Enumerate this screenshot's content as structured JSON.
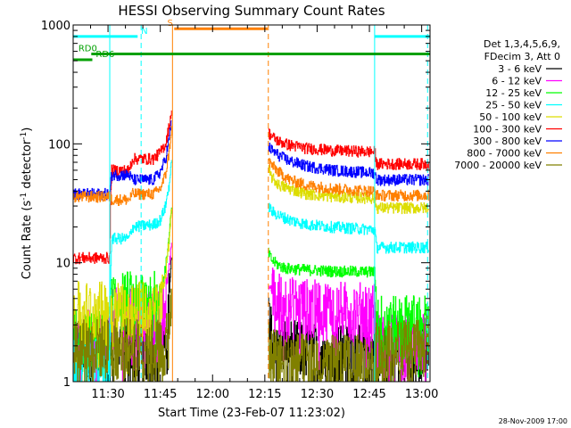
{
  "chart_data": {
    "type": "line",
    "title": "HESSI Observing Summary Count Rates",
    "xlabel": "Start Time (23-Feb-07 11:23:02)",
    "ylabel": "Count Rate (s⁻¹ detector⁻¹)",
    "ylabel_parts": {
      "a": "Count Rate (s",
      "e1": "-1",
      "b": " detector",
      "e2": "-1",
      "c": ")"
    },
    "yscale": "log",
    "ylim": [
      1,
      1000
    ],
    "xlim_minutes": [
      680.0,
      782.4
    ],
    "x_ticks": [
      {
        "m": 690,
        "label": "11:30"
      },
      {
        "m": 705,
        "label": "11:45"
      },
      {
        "m": 720,
        "label": "12:00"
      },
      {
        "m": 735,
        "label": "12:15"
      },
      {
        "m": 750,
        "label": "12:30"
      },
      {
        "m": 765,
        "label": "12:45"
      },
      {
        "m": 780,
        "label": "13:00"
      }
    ],
    "y_ticks": [
      {
        "v": 1,
        "label": "1"
      },
      {
        "v": 10,
        "label": "10"
      },
      {
        "v": 100,
        "label": "100"
      },
      {
        "v": 1000,
        "label": "1000"
      }
    ],
    "legend_header": [
      "Det 1,3,4,5,6,9,",
      "FDecim 3, Att 0"
    ],
    "date_stamp": "28-Nov-2009 17:00",
    "gap": [
      708.5,
      736.0
    ],
    "series": [
      {
        "name": "3 - 6 keV",
        "color": "#000000",
        "segs": [
          {
            "x": [
              680,
              706.5,
              707.0,
              707.6,
              708.3
            ],
            "y": [
              2.2,
              2.2,
              3.0,
              6.0,
              12.0
            ]
          },
          {
            "x": [
              736.0,
              736.5,
              737,
              739,
              741,
              747,
              766.5,
              782
            ],
            "y": [
              4.0,
              3.0,
              2.6,
              2.4,
              2.2,
              2.0,
              1.9,
              1.9
            ]
          }
        ]
      },
      {
        "name": "6 - 12 keV",
        "color": "#ff00ff",
        "segs": [
          {
            "x": [
              680,
              690.5,
              691,
              704,
              705.5,
              706.5,
              707.5,
              708.3
            ],
            "y": [
              2.6,
              2.6,
              4.0,
              4.0,
              4.2,
              5.5,
              9.0,
              14.0
            ]
          },
          {
            "x": [
              736.0,
              737,
              739,
              741,
              745,
              755,
              766.5,
              767,
              782
            ],
            "y": [
              6.5,
              6.0,
              5.4,
              5.0,
              4.8,
              4.5,
              4.4,
              2.4,
              2.4
            ]
          }
        ]
      },
      {
        "name": "12 - 25 keV",
        "color": "#00ff00",
        "segs": [
          {
            "x": [
              680,
              690.5,
              691,
              704,
              705.5,
              706.5,
              707.5,
              708.3
            ],
            "y": [
              2.6,
              2.6,
              5.5,
              5.7,
              6.5,
              9.0,
              16.0,
              30.0
            ]
          },
          {
            "x": [
              736.0,
              737,
              739,
              741,
              745,
              755,
              766.5,
              767,
              782
            ],
            "y": [
              12.0,
              10.5,
              9.5,
              9.0,
              8.8,
              8.5,
              8.4,
              3.5,
              3.5
            ]
          }
        ]
      },
      {
        "name": "25 - 50 keV",
        "color": "#00ffff",
        "segs": [
          {
            "x": [
              680,
              690.5,
              691,
              696,
              697,
              703,
              705,
              706.5,
              707.5,
              708.3
            ],
            "y": [
              1.5,
              1.5,
              16.0,
              16.0,
              20.0,
              21.0,
              23.0,
              30.0,
              45.0,
              70.0
            ]
          },
          {
            "x": [
              736.0,
              737,
              739,
              742,
              747,
              755,
              766.5,
              767,
              782
            ],
            "y": [
              30.0,
              27.0,
              25.0,
              23.0,
              21.0,
              20.0,
              19.0,
              13.5,
              13.5
            ]
          }
        ]
      },
      {
        "name": "50 - 100 keV",
        "color": "#dddd00",
        "segs": [
          {
            "x": [
              680,
              690.5,
              691,
              703,
              705,
              706.5,
              707.5,
              708.3
            ],
            "y": [
              4.5,
              4.5,
              4.5,
              4.5,
              4.5,
              8.0,
              15.0,
              30.0
            ]
          },
          {
            "x": [
              736.0,
              737,
              739,
              742,
              747,
              755,
              766.5,
              767,
              782
            ],
            "y": [
              60.0,
              52.0,
              45.0,
              42.0,
              38.0,
              36.0,
              35.0,
              29.0,
              29.0
            ]
          }
        ]
      },
      {
        "name": "100 - 300 keV",
        "color": "#ff0000",
        "segs": [
          {
            "x": [
              680,
              690.5,
              691,
              696,
              697,
              703,
              705,
              706.5,
              707.5,
              708.3
            ],
            "y": [
              11.0,
              11.0,
              60.0,
              60.0,
              75.0,
              75.0,
              85.0,
              100.0,
              140.0,
              200.0
            ]
          },
          {
            "x": [
              736.0,
              737,
              739,
              742,
              747,
              755,
              766.5,
              767,
              782
            ],
            "y": [
              125.0,
              115.0,
              105.0,
              98.0,
              92.0,
              88.0,
              86.0,
              68.0,
              68.0
            ]
          }
        ]
      },
      {
        "name": "300 - 800 keV",
        "color": "#0000ff",
        "segs": [
          {
            "x": [
              680,
              690.5,
              691,
              696,
              697,
              703,
              705,
              706.5,
              707.5,
              708.3
            ],
            "y": [
              38.0,
              38.0,
              55.0,
              55.0,
              50.0,
              50.0,
              58.0,
              75.0,
              110.0,
              160.0
            ]
          },
          {
            "x": [
              736.0,
              737,
              739,
              742,
              747,
              755,
              766.5,
              767,
              782
            ],
            "y": [
              95.0,
              88.0,
              80.0,
              72.0,
              65.0,
              60.0,
              57.0,
              50.0,
              50.0
            ]
          }
        ]
      },
      {
        "name": "800 - 7000 keV",
        "color": "#ff8000",
        "segs": [
          {
            "x": [
              680,
              690.5,
              691,
              696,
              697,
              703,
              705,
              706.5,
              707.5,
              708.3
            ],
            "y": [
              36.0,
              36.0,
              34.0,
              34.0,
              38.0,
              38.0,
              42.0,
              55.0,
              85.0,
              140.0
            ]
          },
          {
            "x": [
              736.0,
              737,
              739,
              742,
              747,
              755,
              766.5,
              767,
              782
            ],
            "y": [
              72.0,
              66.0,
              58.0,
              50.0,
              45.0,
              42.0,
              40.0,
              37.0,
              37.0
            ]
          }
        ]
      },
      {
        "name": "7000 - 20000 keV",
        "color": "#808000",
        "segs": [
          {
            "x": [
              680,
              690.5,
              691,
              706.5,
              707.5,
              708.3
            ],
            "y": [
              2.2,
              2.2,
              2.2,
              2.2,
              3.0,
              5.0
            ]
          },
          {
            "x": [
              736.0,
              737,
              740,
              750,
              766.5,
              767,
              782
            ],
            "y": [
              2.2,
              1.9,
              1.7,
              1.6,
              1.6,
              2.2,
              2.2
            ]
          }
        ]
      }
    ],
    "state_bars": [
      {
        "label": "N",
        "color": "#00ffff",
        "y": 800,
        "from": 680,
        "to": 698.5,
        "label_at": 699.5
      },
      {
        "label": "",
        "color": "#00ffff",
        "y": 800,
        "from": 766.5,
        "to": 782.4,
        "label_at": null
      },
      {
        "label": "S",
        "color": "#ff8000",
        "y": 930,
        "from": 709.0,
        "to": 735.8,
        "label_at": 707.0
      },
      {
        "label": "RD0",
        "color": "#00a000",
        "y": 570,
        "from": 685.2,
        "to": 782.4,
        "label_at": 681.5
      },
      {
        "label": "RD6",
        "color": "#00a000",
        "y": 510,
        "from": 680,
        "to": 685.5,
        "label_at": 686.5
      }
    ],
    "vlines": [
      {
        "m": 690.5,
        "color": "#00ffff",
        "dash": false
      },
      {
        "m": 699.5,
        "color": "#00ffff",
        "dash": true
      },
      {
        "m": 708.5,
        "color": "#ff8000",
        "dash": false
      },
      {
        "m": 736.0,
        "color": "#ff8000",
        "dash": true
      },
      {
        "m": 766.5,
        "color": "#00ffff",
        "dash": false
      },
      {
        "m": 781.7,
        "color": "#00ffff",
        "dash": true
      }
    ]
  }
}
